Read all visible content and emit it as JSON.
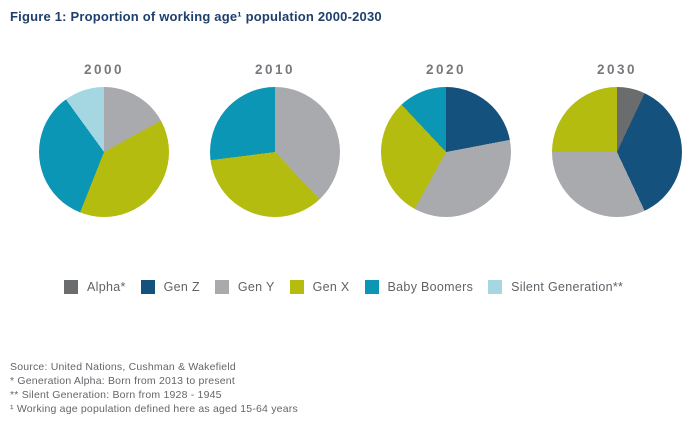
{
  "title": "Figure 1: Proportion of working age¹ population 2000-2030",
  "footnotes": [
    "Source: United Nations, Cushman & Wakefield",
    "* Generation Alpha: Born from 2013 to present",
    "** Silent Generation: Born from 1928 - 1945",
    "¹ Working age population defined here as aged 15-64 years"
  ],
  "chart_data": {
    "type": "pie",
    "title": "Figure 1: Proportion of working age¹ population 2000-2030",
    "layout": {
      "charts_per_row": 4,
      "legend_position": "bottom",
      "slice_start": "12 o'clock, clockwise"
    },
    "colors": {
      "Alpha": "#6a6c6e",
      "Gen Z": "#15517d",
      "Gen Y": "#a9aaad",
      "Gen X": "#b3bc0f",
      "Baby Boomers": "#0a96b4",
      "Silent Generation": "#a4d7e1"
    },
    "legend": [
      {
        "label": "Alpha*",
        "key": "Alpha"
      },
      {
        "label": "Gen Z",
        "key": "Gen Z"
      },
      {
        "label": "Gen Y",
        "key": "Gen Y"
      },
      {
        "label": "Gen X",
        "key": "Gen X"
      },
      {
        "label": "Baby Boomers",
        "key": "Baby Boomers"
      },
      {
        "label": "Silent Generation**",
        "key": "Silent Generation"
      }
    ],
    "pies": [
      {
        "year": "2000",
        "slices": [
          {
            "label": "Gen Y",
            "value": 17
          },
          {
            "label": "Gen X",
            "value": 39
          },
          {
            "label": "Baby Boomers",
            "value": 34
          },
          {
            "label": "Silent Generation",
            "value": 10
          }
        ]
      },
      {
        "year": "2010",
        "slices": [
          {
            "label": "Gen Y",
            "value": 38
          },
          {
            "label": "Gen X",
            "value": 35
          },
          {
            "label": "Baby Boomers",
            "value": 27
          }
        ]
      },
      {
        "year": "2020",
        "slices": [
          {
            "label": "Gen Z",
            "value": 22
          },
          {
            "label": "Gen Y",
            "value": 36
          },
          {
            "label": "Gen X",
            "value": 30
          },
          {
            "label": "Baby Boomers",
            "value": 12
          }
        ]
      },
      {
        "year": "2030",
        "slices": [
          {
            "label": "Alpha",
            "value": 7
          },
          {
            "label": "Gen Z",
            "value": 36
          },
          {
            "label": "Gen Y",
            "value": 32
          },
          {
            "label": "Gen X",
            "value": 25
          }
        ]
      }
    ]
  }
}
